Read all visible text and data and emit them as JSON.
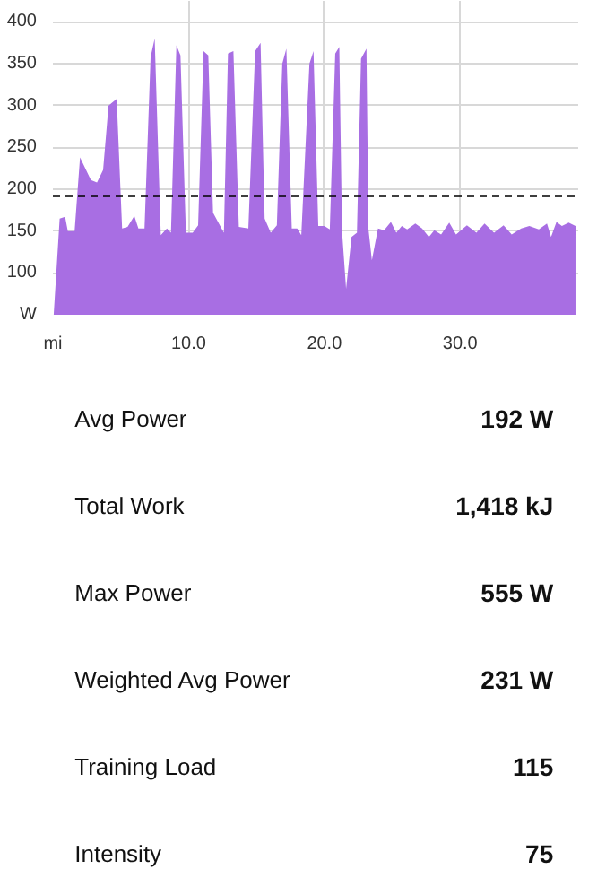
{
  "chart_data": [
    {
      "type": "area",
      "xlim": [
        0,
        38.7
      ],
      "ylim": [
        50,
        425
      ],
      "xticks": [
        {
          "value": 0,
          "label": "mi"
        },
        {
          "value": 10,
          "label": "10.0"
        },
        {
          "value": 20,
          "label": "20.0"
        },
        {
          "value": 30,
          "label": "30.0"
        }
      ],
      "yticks": [
        {
          "value": 50,
          "label": "W"
        },
        100,
        150,
        200,
        250,
        300,
        350,
        400
      ],
      "grid": true,
      "x": [
        0.06,
        0.5,
        0.9,
        1.1,
        1.6,
        2.0,
        2.8,
        3.25,
        3.7,
        4.1,
        4.7,
        5.1,
        5.5,
        6.0,
        6.3,
        6.75,
        7.2,
        7.5,
        7.95,
        8.4,
        8.7,
        9.1,
        9.4,
        9.8,
        10.3,
        10.7,
        11.1,
        11.45,
        11.8,
        12.3,
        12.6,
        12.9,
        13.3,
        13.7,
        14.4,
        14.9,
        15.3,
        15.6,
        16.05,
        16.5,
        16.9,
        17.2,
        17.6,
        18.0,
        18.3,
        18.9,
        19.2,
        19.55,
        20.0,
        20.4,
        20.8,
        21.1,
        21.3,
        21.6,
        22.0,
        22.4,
        22.7,
        23.1,
        23.25,
        23.5,
        23.95,
        24.4,
        24.9,
        25.3,
        25.7,
        26.1,
        26.7,
        27.2,
        27.7,
        28.1,
        28.6,
        29.2,
        29.7,
        30.5,
        31.2,
        31.8,
        32.5,
        33.2,
        33.8,
        34.5,
        35.1,
        35.8,
        36.4,
        36.7,
        37.1,
        37.5,
        38.0,
        38.5
      ],
      "series": [
        {
          "color": "#a86ee3",
          "values": [
            50,
            165,
            167,
            150,
            150,
            238,
            211,
            208,
            223,
            300,
            308,
            153,
            155,
            168,
            153,
            153,
            358,
            380,
            145,
            153,
            148,
            372,
            360,
            148,
            148,
            157,
            365,
            360,
            172,
            157,
            148,
            362,
            365,
            155,
            153,
            365,
            375,
            165,
            148,
            157,
            350,
            368,
            153,
            153,
            145,
            350,
            365,
            156,
            156,
            152,
            362,
            370,
            150,
            81,
            143,
            148,
            356,
            368,
            152,
            115,
            153,
            151,
            161,
            148,
            156,
            152,
            159,
            153,
            143,
            151,
            146,
            160,
            146,
            157,
            148,
            159,
            148,
            157,
            146,
            153,
            156,
            152,
            159,
            143,
            161,
            156,
            160,
            156
          ]
        }
      ],
      "ref_lines": [
        {
          "axis": "y",
          "value": 192,
          "color": "#000000",
          "line_style": "dashed"
        }
      ]
    },
    {
      "type": "other",
      "categories": [
        "Avg Power",
        "Total Work",
        "Max Power",
        "Weighted Avg Power",
        "Training Load",
        "Intensity"
      ],
      "value_labels": [
        "192 W",
        "1,418 kJ",
        "555 W",
        "231 W",
        "115",
        "75"
      ]
    }
  ]
}
